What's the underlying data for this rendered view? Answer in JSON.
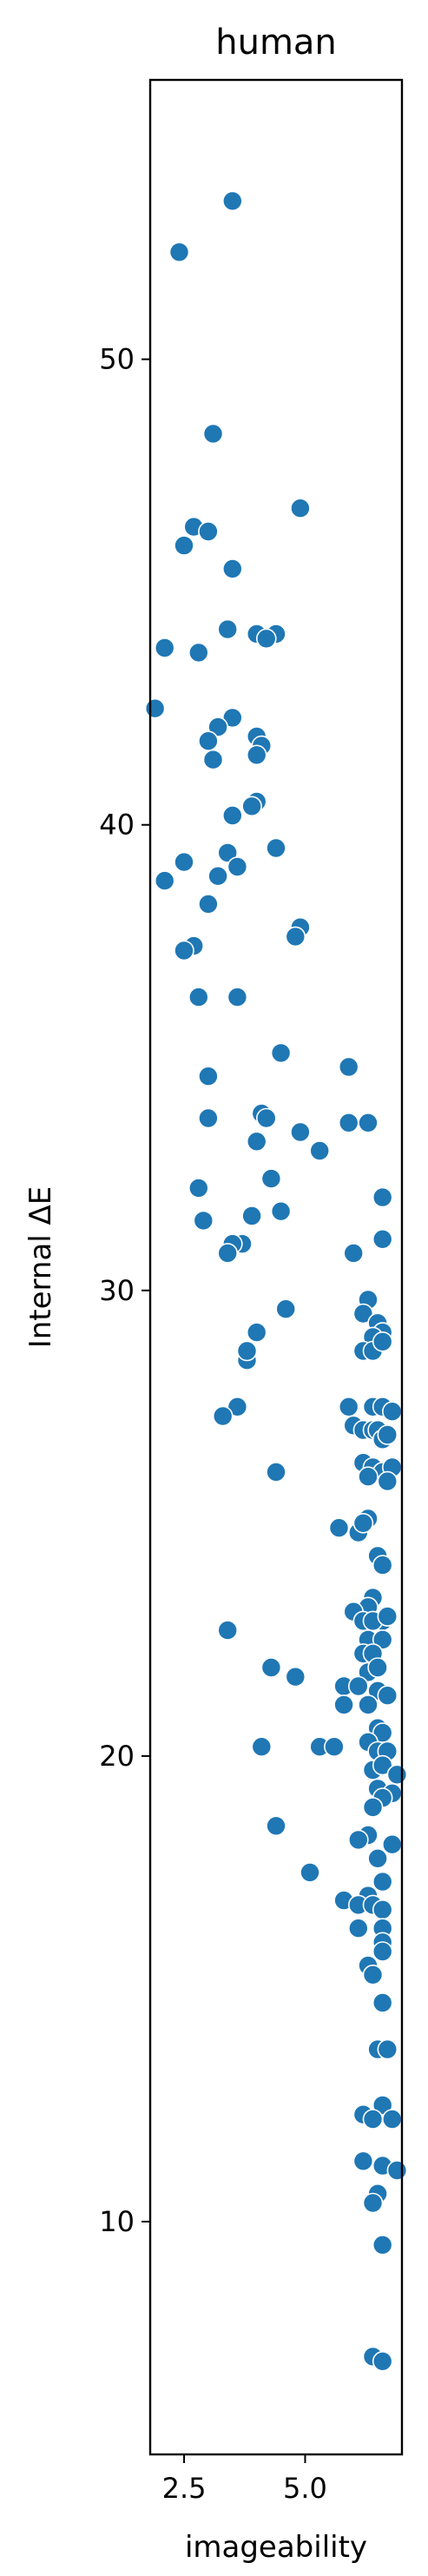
{
  "chart_data": {
    "type": "scatter",
    "title": "human",
    "xlabel": "imageability",
    "ylabel": "Internal ΔE",
    "xlim": [
      1.8,
      7.0
    ],
    "ylim": [
      5.0,
      56.0
    ],
    "xticks": [
      {
        "value": 2.5,
        "label": "2.5"
      },
      {
        "value": 5.0,
        "label": "5.0"
      }
    ],
    "yticks": [
      {
        "value": 10,
        "label": "10"
      },
      {
        "value": 20,
        "label": "20"
      },
      {
        "value": 30,
        "label": "30"
      },
      {
        "value": 40,
        "label": "40"
      },
      {
        "value": 50,
        "label": "50"
      }
    ],
    "grid": false,
    "color": "#1f77b4",
    "points": [
      [
        3.5,
        53.4
      ],
      [
        2.4,
        52.3
      ],
      [
        3.1,
        48.4
      ],
      [
        4.9,
        46.8
      ],
      [
        2.7,
        46.4
      ],
      [
        3.0,
        46.3
      ],
      [
        2.5,
        46.0
      ],
      [
        3.5,
        45.5
      ],
      [
        4.0,
        44.1
      ],
      [
        4.4,
        44.1
      ],
      [
        4.2,
        44.0
      ],
      [
        3.4,
        44.2
      ],
      [
        2.1,
        43.8
      ],
      [
        2.8,
        43.7
      ],
      [
        1.9,
        42.5
      ],
      [
        3.5,
        42.3
      ],
      [
        3.2,
        42.1
      ],
      [
        4.0,
        41.9
      ],
      [
        3.0,
        41.8
      ],
      [
        4.1,
        41.7
      ],
      [
        4.0,
        41.5
      ],
      [
        3.1,
        41.4
      ],
      [
        4.0,
        40.5
      ],
      [
        3.9,
        40.4
      ],
      [
        3.5,
        40.2
      ],
      [
        4.4,
        39.5
      ],
      [
        3.4,
        39.4
      ],
      [
        2.5,
        39.2
      ],
      [
        3.6,
        39.1
      ],
      [
        3.2,
        38.9
      ],
      [
        2.1,
        38.8
      ],
      [
        3.0,
        38.3
      ],
      [
        4.9,
        37.8
      ],
      [
        4.8,
        37.6
      ],
      [
        2.7,
        37.4
      ],
      [
        2.5,
        37.3
      ],
      [
        2.8,
        36.3
      ],
      [
        3.6,
        36.3
      ],
      [
        4.5,
        35.1
      ],
      [
        5.9,
        34.8
      ],
      [
        3.0,
        34.6
      ],
      [
        4.1,
        33.8
      ],
      [
        4.2,
        33.7
      ],
      [
        5.9,
        33.6
      ],
      [
        6.3,
        33.6
      ],
      [
        3.0,
        33.7
      ],
      [
        4.9,
        33.4
      ],
      [
        4.0,
        33.2
      ],
      [
        5.3,
        33.0
      ],
      [
        2.8,
        32.2
      ],
      [
        6.6,
        32.0
      ],
      [
        4.3,
        32.4
      ],
      [
        2.9,
        31.5
      ],
      [
        3.9,
        31.6
      ],
      [
        4.5,
        31.7
      ],
      [
        6.6,
        31.1
      ],
      [
        3.7,
        31.0
      ],
      [
        3.5,
        31.0
      ],
      [
        3.4,
        30.8
      ],
      [
        6.0,
        30.8
      ],
      [
        6.3,
        29.8
      ],
      [
        6.2,
        29.5
      ],
      [
        4.6,
        29.6
      ],
      [
        6.5,
        29.3
      ],
      [
        6.6,
        29.1
      ],
      [
        6.4,
        29.0
      ],
      [
        4.0,
        29.1
      ],
      [
        6.2,
        28.7
      ],
      [
        6.4,
        28.7
      ],
      [
        3.8,
        28.5
      ],
      [
        3.8,
        28.7
      ],
      [
        6.6,
        28.9
      ],
      [
        3.6,
        27.5
      ],
      [
        3.3,
        27.3
      ],
      [
        5.9,
        27.5
      ],
      [
        6.4,
        27.5
      ],
      [
        6.6,
        27.5
      ],
      [
        6.8,
        27.4
      ],
      [
        6.0,
        27.1
      ],
      [
        6.2,
        27.0
      ],
      [
        6.4,
        27.0
      ],
      [
        6.5,
        27.0
      ],
      [
        6.6,
        26.8
      ],
      [
        6.7,
        26.9
      ],
      [
        6.3,
        26.2
      ],
      [
        6.2,
        26.3
      ],
      [
        6.4,
        26.2
      ],
      [
        6.6,
        26.1
      ],
      [
        6.8,
        26.2
      ],
      [
        4.4,
        26.1
      ],
      [
        6.3,
        26.0
      ],
      [
        6.7,
        25.9
      ],
      [
        5.7,
        24.9
      ],
      [
        6.1,
        24.8
      ],
      [
        6.3,
        25.1
      ],
      [
        6.2,
        25.0
      ],
      [
        6.5,
        24.3
      ],
      [
        6.6,
        24.1
      ],
      [
        6.4,
        23.4
      ],
      [
        6.3,
        23.2
      ],
      [
        6.0,
        23.1
      ],
      [
        6.2,
        22.9
      ],
      [
        6.6,
        22.9
      ],
      [
        6.4,
        22.9
      ],
      [
        6.7,
        23.0
      ],
      [
        3.4,
        22.7
      ],
      [
        6.3,
        22.5
      ],
      [
        6.6,
        22.5
      ],
      [
        6.2,
        22.2
      ],
      [
        6.4,
        22.2
      ],
      [
        6.3,
        21.8
      ],
      [
        6.5,
        21.9
      ],
      [
        4.3,
        21.9
      ],
      [
        4.8,
        21.7
      ],
      [
        5.8,
        21.5
      ],
      [
        6.1,
        21.5
      ],
      [
        6.5,
        21.4
      ],
      [
        6.7,
        21.3
      ],
      [
        6.3,
        21.1
      ],
      [
        5.8,
        21.1
      ],
      [
        6.5,
        20.6
      ],
      [
        6.6,
        20.5
      ],
      [
        6.3,
        20.3
      ],
      [
        5.3,
        20.2
      ],
      [
        5.6,
        20.2
      ],
      [
        4.1,
        20.2
      ],
      [
        6.5,
        20.1
      ],
      [
        6.7,
        20.1
      ],
      [
        6.4,
        19.7
      ],
      [
        6.6,
        19.8
      ],
      [
        6.9,
        19.6
      ],
      [
        6.5,
        19.3
      ],
      [
        6.8,
        19.2
      ],
      [
        6.6,
        19.1
      ],
      [
        6.4,
        18.9
      ],
      [
        4.4,
        18.5
      ],
      [
        6.3,
        18.3
      ],
      [
        6.1,
        18.2
      ],
      [
        6.8,
        18.1
      ],
      [
        6.5,
        17.8
      ],
      [
        5.1,
        17.5
      ],
      [
        6.6,
        17.3
      ],
      [
        6.3,
        17.0
      ],
      [
        5.8,
        16.9
      ],
      [
        6.1,
        16.8
      ],
      [
        6.4,
        16.8
      ],
      [
        6.6,
        16.7
      ],
      [
        6.6,
        16.3
      ],
      [
        6.1,
        16.3
      ],
      [
        6.6,
        16.0
      ],
      [
        6.6,
        15.8
      ],
      [
        6.3,
        15.5
      ],
      [
        6.4,
        15.3
      ],
      [
        6.6,
        14.7
      ],
      [
        6.5,
        13.7
      ],
      [
        6.7,
        13.7
      ],
      [
        6.6,
        12.5
      ],
      [
        6.2,
        12.3
      ],
      [
        6.4,
        12.2
      ],
      [
        6.8,
        12.2
      ],
      [
        6.2,
        11.3
      ],
      [
        6.6,
        11.2
      ],
      [
        6.9,
        11.1
      ],
      [
        6.5,
        10.6
      ],
      [
        6.4,
        10.4
      ],
      [
        6.6,
        9.5
      ],
      [
        6.4,
        7.1
      ],
      [
        6.6,
        7.0
      ]
    ]
  }
}
